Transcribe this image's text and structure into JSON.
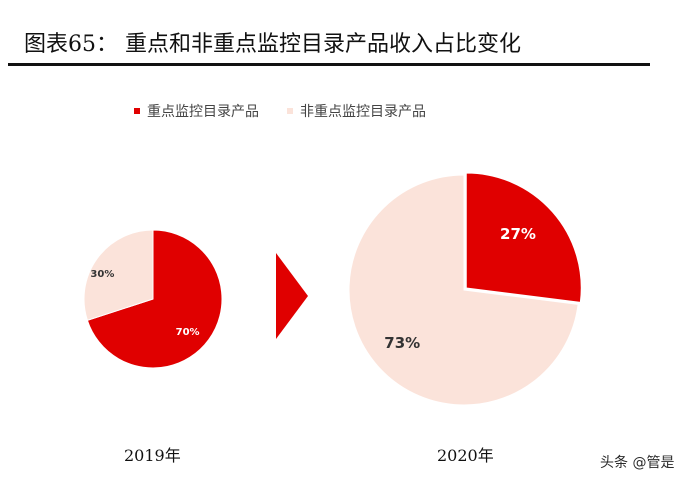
{
  "title": "图表65：  重点和非重点监控目录产品收入占比变化",
  "watermark": "头条 @管是",
  "colors": {
    "key": "#e00000",
    "nonkey": "#fbe3da",
    "arrow": "#e00000"
  },
  "chart_data": {
    "type": "pie",
    "legend": {
      "position": "top",
      "entries": [
        {
          "name": "重点监控目录产品",
          "color": "#e00000"
        },
        {
          "name": "非重点监控目录产品",
          "color": "#fbe3da"
        }
      ]
    },
    "charts": [
      {
        "label": "2019年",
        "slices": [
          {
            "name": "重点监控目录产品",
            "value": 70,
            "label": "70%"
          },
          {
            "name": "非重点监控目录产品",
            "value": 30,
            "label": "30%"
          }
        ]
      },
      {
        "label": "2020年",
        "slices": [
          {
            "name": "重点监控目录产品",
            "value": 27,
            "label": "27%"
          },
          {
            "name": "非重点监控目录产品",
            "value": 73,
            "label": "73%"
          }
        ]
      }
    ]
  }
}
